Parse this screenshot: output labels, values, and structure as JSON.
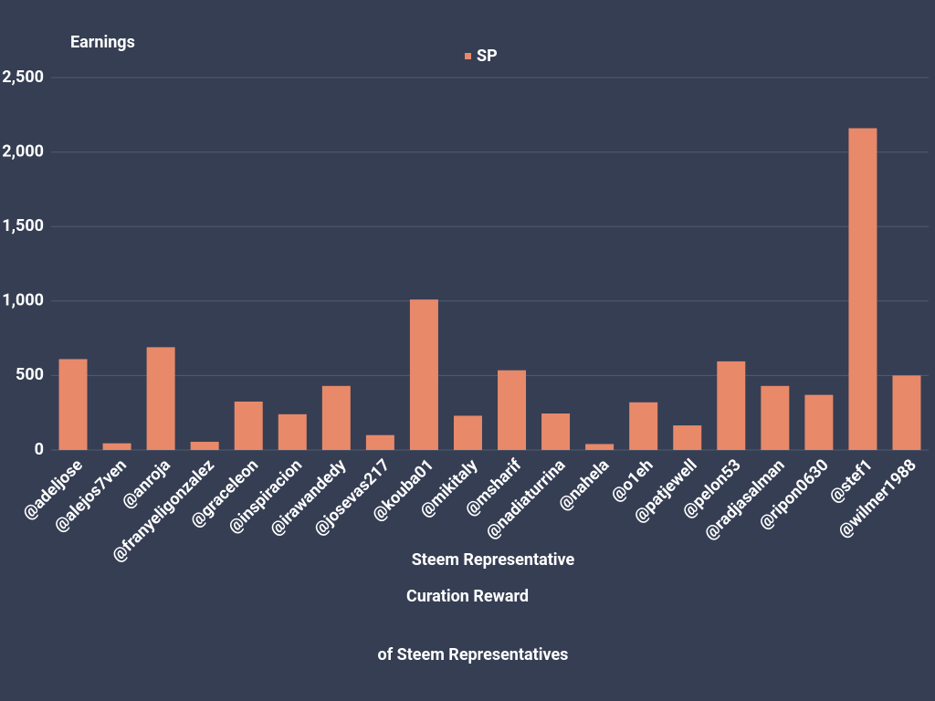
{
  "chart_data": {
    "type": "bar",
    "title": [
      "Curation Reward",
      "of Steem Representatives"
    ],
    "y_label": "Earnings",
    "x_label": "Steem Representative",
    "categories": [
      "@adeljose",
      "@alejos7ven",
      "@anroja",
      "@franyeligonzalez",
      "@graceleon",
      "@inspiracion",
      "@irawandedy",
      "@josevas217",
      "@kouba01",
      "@mikitaly",
      "@msharif",
      "@nadiaturrina",
      "@nahela",
      "@o1eh",
      "@patjewell",
      "@pelon53",
      "@radjasalman",
      "@ripon0630",
      "@stef1",
      "@wilmer1988"
    ],
    "series": [
      {
        "name": "SP",
        "color": "#e8896a",
        "values": [
          610,
          45,
          690,
          55,
          325,
          240,
          430,
          100,
          1010,
          230,
          535,
          245,
          40,
          320,
          165,
          595,
          430,
          370,
          2160,
          500
        ]
      }
    ],
    "ylim": [
      0,
      2500
    ],
    "yticks": [
      0,
      500,
      {
        "value": 1000,
        "label": "1,000"
      },
      {
        "value": 1500,
        "label": "1,500"
      },
      {
        "value": 2000,
        "label": "2,000"
      },
      {
        "value": 2500,
        "label": "2,500"
      }
    ],
    "grid": true,
    "legend": "top"
  }
}
